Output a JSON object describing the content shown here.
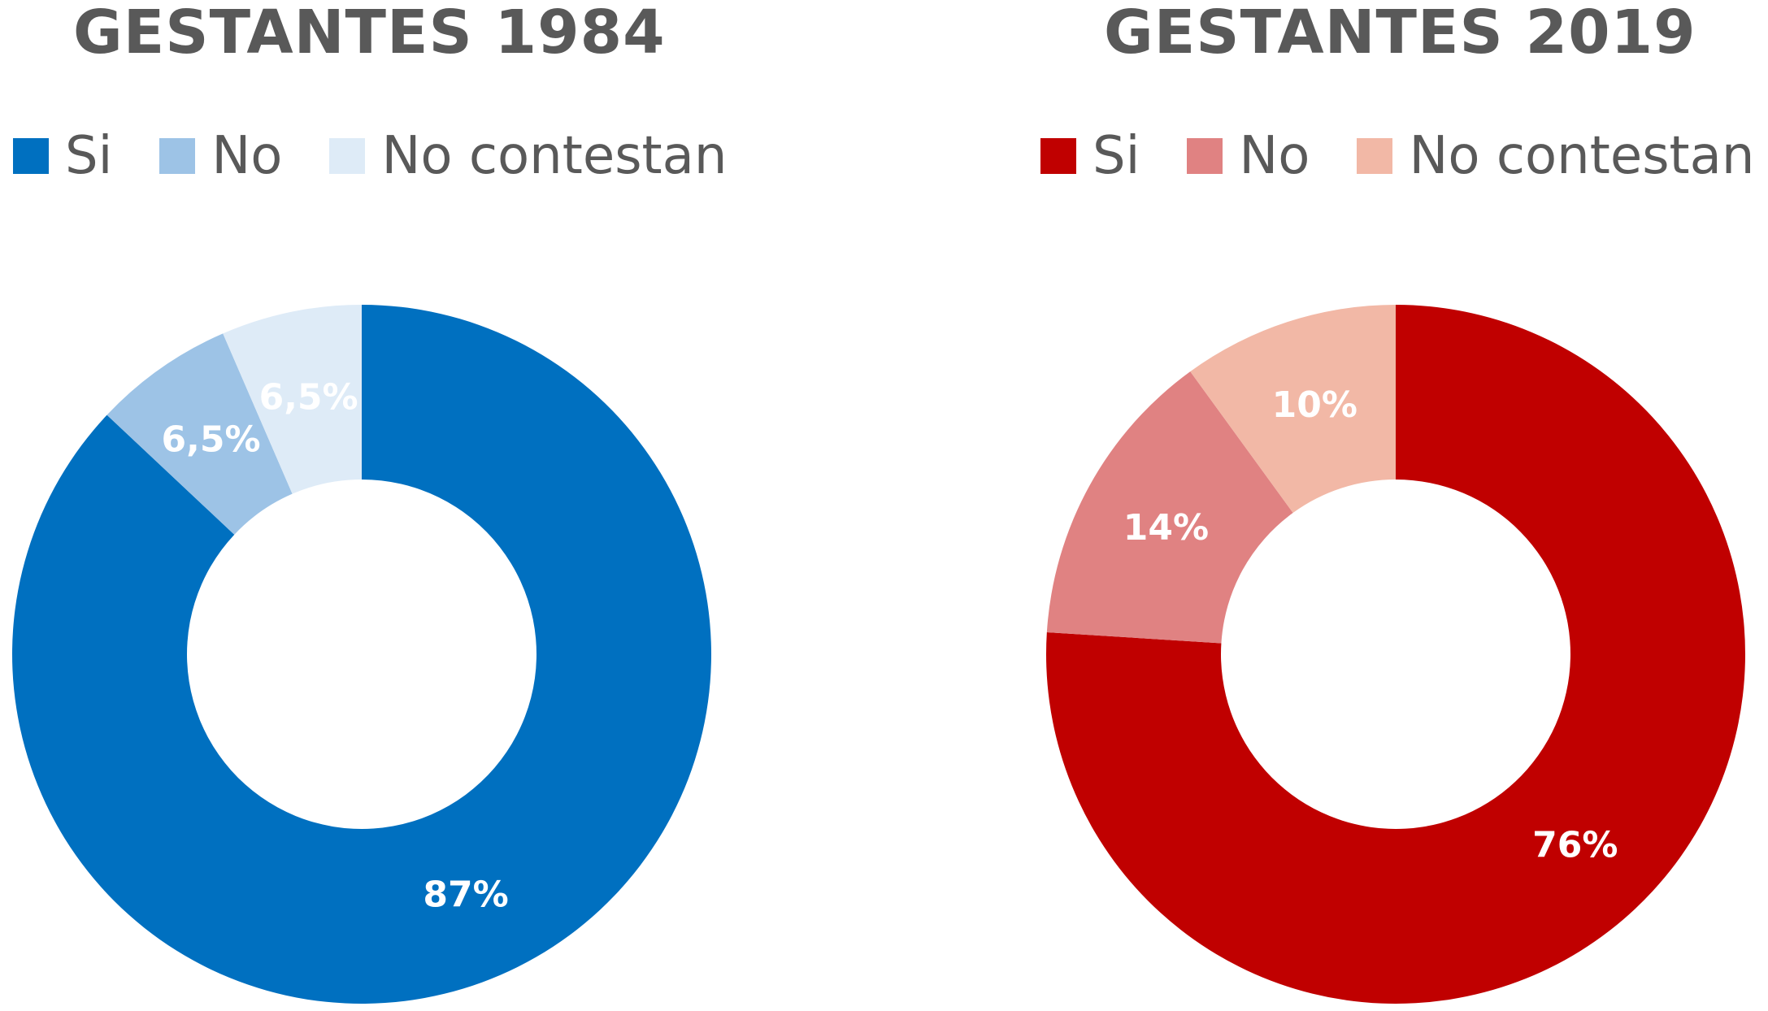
{
  "chart_data": [
    {
      "type": "pie",
      "title": "GESTANTES 1984",
      "categories": [
        "Si",
        "No",
        "No contestan"
      ],
      "values": [
        87,
        6.5,
        6.5
      ],
      "data_labels": [
        "87%",
        "6,5%",
        "6,5%"
      ],
      "colors": [
        "#0070c0",
        "#9dc3e6",
        "#deebf7"
      ],
      "legend": "top"
    },
    {
      "type": "pie",
      "title": "GESTANTES 2019",
      "categories": [
        "Si",
        "No",
        "No contestan"
      ],
      "values": [
        76,
        14,
        10
      ],
      "data_labels": [
        "76%",
        "14%",
        "10%"
      ],
      "colors": [
        "#c00000",
        "#e08282",
        "#f2b8a6"
      ],
      "legend": "top"
    }
  ]
}
